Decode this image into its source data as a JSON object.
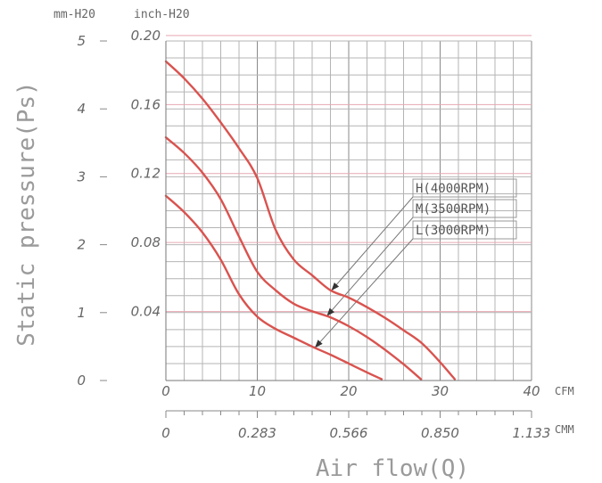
{
  "chart_data": {
    "type": "line",
    "units": {
      "left_primary": "mm-H20",
      "left_secondary": "inch-H20",
      "cfm": "CFM",
      "cmm": "CMM"
    },
    "xlabel": "Air flow(Q)",
    "ylabel": "Static pressure(Ps)",
    "xlim": [
      0,
      40
    ],
    "ylim": [
      0,
      5
    ],
    "x_ticks_cfm": [
      "0",
      "10",
      "20",
      "30",
      "40"
    ],
    "x_ticks_cmm": [
      "0",
      "0.283",
      "0.566",
      "0.850",
      "1.133"
    ],
    "y_ticks_mm": [
      "0",
      "1",
      "2",
      "3",
      "4",
      "5"
    ],
    "y_ticks_inch": [
      "0.04",
      "0.08",
      "0.12",
      "0.16",
      "0.20"
    ],
    "series": [
      {
        "name": "H(4000RPM)",
        "x": [
          0,
          2,
          4,
          6,
          8,
          10,
          12,
          14,
          16,
          18,
          20,
          22,
          24,
          26,
          28,
          30,
          31.6
        ],
        "y": [
          4.7,
          4.45,
          4.15,
          3.8,
          3.42,
          2.98,
          2.22,
          1.78,
          1.55,
          1.33,
          1.22,
          1.08,
          0.92,
          0.74,
          0.55,
          0.27,
          0.02
        ]
      },
      {
        "name": "M(3500RPM)",
        "x": [
          0,
          2,
          4,
          6,
          8,
          10,
          12,
          14,
          16,
          18,
          20,
          22,
          24,
          26,
          27.9
        ],
        "y": [
          3.58,
          3.35,
          3.06,
          2.67,
          2.12,
          1.6,
          1.33,
          1.13,
          1.02,
          0.93,
          0.8,
          0.64,
          0.45,
          0.24,
          0.02
        ]
      },
      {
        "name": "L(3000RPM)",
        "x": [
          0,
          2,
          4,
          6,
          8,
          10,
          12,
          14,
          16,
          18,
          20,
          22,
          23.6
        ],
        "y": [
          2.72,
          2.48,
          2.18,
          1.78,
          1.27,
          0.94,
          0.76,
          0.63,
          0.5,
          0.38,
          0.25,
          0.12,
          0.02
        ]
      }
    ],
    "grid": true,
    "legend_position": "right, callout leaders"
  }
}
